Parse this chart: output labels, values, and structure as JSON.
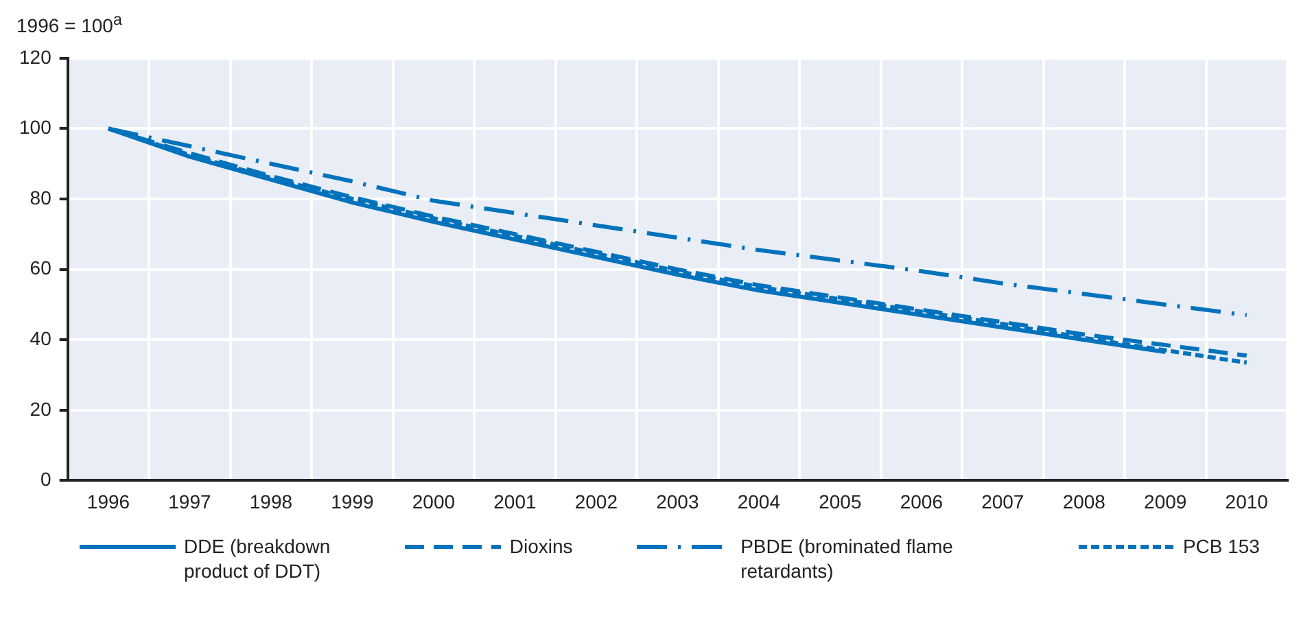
{
  "chart_data": {
    "type": "line",
    "ylabel": "1996 = 100$^{a}$",
    "categories": [
      "1996",
      "1997",
      "1998",
      "1999",
      "2000",
      "2001",
      "2002",
      "2003",
      "2004",
      "2005",
      "2006",
      "2007",
      "2008",
      "2009",
      "2010"
    ],
    "series": [
      {
        "name": "DDE (breakdown product of DDT)",
        "color": "#0072bc",
        "line_style": "solid",
        "values": [
          100,
          92,
          85.5,
          79,
          73.5,
          68.5,
          63.5,
          58.5,
          54,
          50.5,
          47,
          43.5,
          40,
          36.5,
          null
        ]
      },
      {
        "name": "Dioxins",
        "color": "#0072bc",
        "line_style": "dashed",
        "values": [
          100,
          93,
          86.5,
          80.5,
          75,
          70,
          65,
          60,
          55.5,
          52,
          48.5,
          45,
          41.5,
          38.5,
          35.5
        ]
      },
      {
        "name": "PBDE (brominated flame retardants)",
        "color": "#0072bc",
        "line_style": "dashdot",
        "values": [
          100,
          95,
          90,
          85,
          79.5,
          76,
          72.5,
          69,
          65.5,
          62.5,
          59.5,
          56,
          53,
          50,
          47
        ]
      },
      {
        "name": "PCB 153",
        "color": "#0072bc",
        "line_style": "dotted",
        "values": [
          100,
          92.5,
          86,
          80,
          74.5,
          69.5,
          64.5,
          59.5,
          55,
          51.5,
          48,
          44.5,
          40.5,
          37,
          33.5
        ]
      }
    ],
    "ylim": [
      0,
      120
    ],
    "yticks": [
      0,
      20,
      40,
      60,
      80,
      100,
      120
    ],
    "grid": true,
    "legend": "bottom",
    "marker": "none"
  }
}
